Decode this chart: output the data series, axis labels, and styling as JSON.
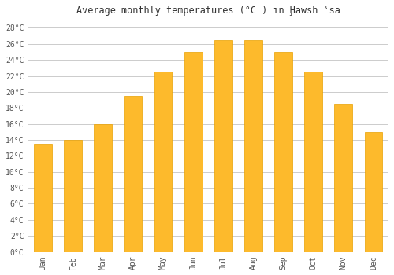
{
  "title": "Average monthly temperatures (°C ) in Ḩawsh ʿsā",
  "months": [
    "Jan",
    "Feb",
    "Mar",
    "Apr",
    "May",
    "Jun",
    "Jul",
    "Aug",
    "Sep",
    "Oct",
    "Nov",
    "Dec"
  ],
  "values": [
    13.5,
    14.0,
    16.0,
    19.5,
    22.5,
    25.0,
    26.5,
    26.5,
    25.0,
    22.5,
    18.5,
    15.0
  ],
  "bar_color_top": "#FDBA2C",
  "bar_color_bottom": "#F5A800",
  "bar_edge_color": "#E8A000",
  "ylim": [
    0,
    29
  ],
  "yticks": [
    0,
    2,
    4,
    6,
    8,
    10,
    12,
    14,
    16,
    18,
    20,
    22,
    24,
    26,
    28
  ],
  "background_color": "#ffffff",
  "grid_color": "#cccccc",
  "title_fontsize": 8.5,
  "tick_fontsize": 7,
  "font_family": "monospace"
}
